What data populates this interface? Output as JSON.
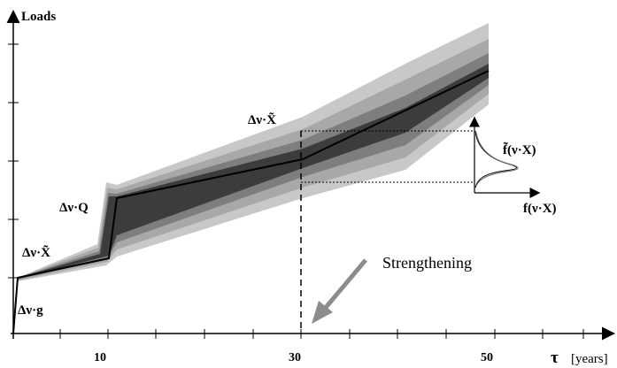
{
  "axes": {
    "y_label": "Loads",
    "x_symbol": "τ",
    "x_unit": "[years]",
    "x_ticks": [
      "10",
      "30",
      "50"
    ]
  },
  "labels": {
    "dead_load": "Δν·g",
    "initial_variable": "Δν·X̃",
    "increment": "Δν·Q",
    "at_30": "Δν·X̃",
    "density_tilde": "f̃(ν·X)",
    "density": "f(ν·X)",
    "event": "Strengthening"
  },
  "colors": {
    "band_outer": "#c4c4c4",
    "band_inner": "#3c3c3c",
    "mean_line": "#000000",
    "arrow": "#8c8c8c"
  }
}
